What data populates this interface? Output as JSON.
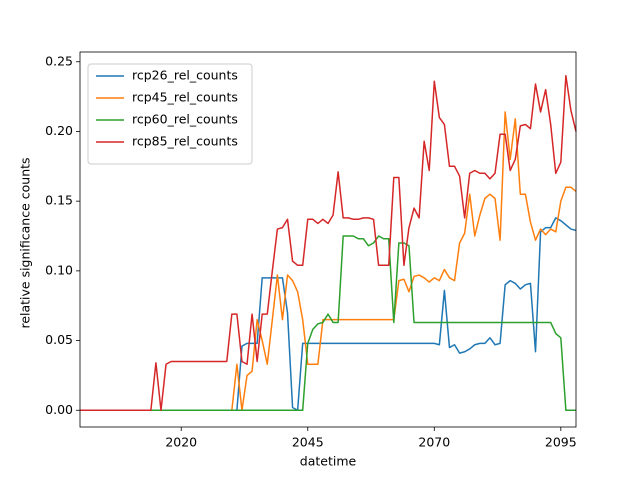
{
  "chart_data": {
    "type": "line",
    "x_label": "datetime",
    "y_label": "relative significance counts",
    "x": [
      2000,
      2001,
      2002,
      2003,
      2004,
      2005,
      2006,
      2007,
      2008,
      2009,
      2010,
      2011,
      2012,
      2013,
      2014,
      2015,
      2016,
      2017,
      2018,
      2019,
      2020,
      2021,
      2022,
      2023,
      2024,
      2025,
      2026,
      2027,
      2028,
      2029,
      2030,
      2031,
      2032,
      2033,
      2034,
      2035,
      2036,
      2037,
      2038,
      2039,
      2040,
      2041,
      2042,
      2043,
      2044,
      2045,
      2046,
      2047,
      2048,
      2049,
      2050,
      2051,
      2052,
      2053,
      2054,
      2055,
      2056,
      2057,
      2058,
      2059,
      2060,
      2061,
      2062,
      2063,
      2064,
      2065,
      2066,
      2067,
      2068,
      2069,
      2070,
      2071,
      2072,
      2073,
      2074,
      2075,
      2076,
      2077,
      2078,
      2079,
      2080,
      2081,
      2082,
      2083,
      2084,
      2085,
      2086,
      2087,
      2088,
      2089,
      2090,
      2091,
      2092,
      2093,
      2094,
      2095,
      2096,
      2097,
      2098
    ],
    "series": [
      {
        "name": "rcp26_rel_counts",
        "color": "#1f77b4",
        "values": [
          0,
          0,
          0,
          0,
          0,
          0,
          0,
          0,
          0,
          0,
          0,
          0,
          0,
          0,
          0,
          0,
          0,
          0,
          0,
          0,
          0,
          0,
          0,
          0,
          0,
          0,
          0,
          0,
          0,
          0,
          0,
          0,
          0.046,
          0.048,
          0.048,
          0.048,
          0.095,
          0.095,
          0.095,
          0.095,
          0.095,
          0.07,
          0.002,
          0,
          0.048,
          0.048,
          0.048,
          0.048,
          0.048,
          0.048,
          0.048,
          0.048,
          0.048,
          0.048,
          0.048,
          0.048,
          0.048,
          0.048,
          0.048,
          0.048,
          0.048,
          0.048,
          0.048,
          0.048,
          0.048,
          0.048,
          0.048,
          0.048,
          0.048,
          0.048,
          0.048,
          0.047,
          0.086,
          0.045,
          0.047,
          0.041,
          0.042,
          0.044,
          0.047,
          0.048,
          0.048,
          0.052,
          0.047,
          0.048,
          0.09,
          0.093,
          0.091,
          0.087,
          0.09,
          0.091,
          0.042,
          0.128,
          0.131,
          0.131,
          0.138,
          0.136,
          0.133,
          0.13,
          0.129
        ]
      },
      {
        "name": "rcp45_rel_counts",
        "color": "#ff7f0e",
        "values": [
          0,
          0,
          0,
          0,
          0,
          0,
          0,
          0,
          0,
          0,
          0,
          0,
          0,
          0,
          0,
          0,
          0,
          0,
          0,
          0,
          0,
          0,
          0,
          0,
          0,
          0,
          0,
          0,
          0,
          0,
          0,
          0.033,
          0,
          0.025,
          0.028,
          0.065,
          0.05,
          0.033,
          0.065,
          0.097,
          0.065,
          0.097,
          0.093,
          0.085,
          0.065,
          0.033,
          0.033,
          0.033,
          0.065,
          0.065,
          0.065,
          0.065,
          0.065,
          0.065,
          0.065,
          0.065,
          0.065,
          0.065,
          0.065,
          0.065,
          0.065,
          0.065,
          0.065,
          0.093,
          0.094,
          0.085,
          0.096,
          0.097,
          0.095,
          0.092,
          0.095,
          0.093,
          0.101,
          0.095,
          0.093,
          0.12,
          0.127,
          0.155,
          0.125,
          0.14,
          0.152,
          0.155,
          0.152,
          0.122,
          0.214,
          0.18,
          0.209,
          0.155,
          0.155,
          0.135,
          0.122,
          0.13,
          0.126,
          0.13,
          0.128,
          0.15,
          0.16,
          0.16,
          0.157
        ]
      },
      {
        "name": "rcp60_rel_counts",
        "color": "#2ca02c",
        "values": [
          0,
          0,
          0,
          0,
          0,
          0,
          0,
          0,
          0,
          0,
          0,
          0,
          0,
          0,
          0,
          0,
          0,
          0,
          0,
          0,
          0,
          0,
          0,
          0,
          0,
          0,
          0,
          0,
          0,
          0,
          0,
          0,
          0,
          0,
          0,
          0,
          0,
          0,
          0,
          0,
          0,
          0,
          0,
          0,
          0,
          0.048,
          0.058,
          0.062,
          0.063,
          0.069,
          0.063,
          0.063,
          0.125,
          0.125,
          0.125,
          0.123,
          0.123,
          0.118,
          0.12,
          0.125,
          0.123,
          0.123,
          0.063,
          0.12,
          0.12,
          0.118,
          0.063,
          0.063,
          0.063,
          0.063,
          0.063,
          0.063,
          0.063,
          0.063,
          0.063,
          0.063,
          0.063,
          0.063,
          0.063,
          0.063,
          0.063,
          0.063,
          0.063,
          0.063,
          0.063,
          0.063,
          0.063,
          0.063,
          0.063,
          0.063,
          0.063,
          0.063,
          0.063,
          0.063,
          0.055,
          0.052,
          0,
          0,
          0
        ]
      },
      {
        "name": "rcp85_rel_counts",
        "color": "#d62728",
        "values": [
          0,
          0,
          0,
          0,
          0,
          0,
          0,
          0,
          0,
          0,
          0,
          0,
          0,
          0,
          0,
          0.034,
          0,
          0.033,
          0.035,
          0.035,
          0.035,
          0.035,
          0.035,
          0.035,
          0.035,
          0.035,
          0.035,
          0.035,
          0.035,
          0.035,
          0.069,
          0.069,
          0.035,
          0.033,
          0.069,
          0.035,
          0.069,
          0.069,
          0.1,
          0.13,
          0.131,
          0.137,
          0.107,
          0.104,
          0.104,
          0.137,
          0.137,
          0.134,
          0.137,
          0.134,
          0.14,
          0.171,
          0.138,
          0.138,
          0.137,
          0.137,
          0.138,
          0.138,
          0.137,
          0.104,
          0.104,
          0.104,
          0.167,
          0.167,
          0.104,
          0.131,
          0.145,
          0.138,
          0.193,
          0.172,
          0.236,
          0.21,
          0.205,
          0.175,
          0.175,
          0.168,
          0.138,
          0.17,
          0.172,
          0.17,
          0.17,
          0.166,
          0.17,
          0.198,
          0.198,
          0.172,
          0.18,
          0.204,
          0.205,
          0.202,
          0.234,
          0.214,
          0.23,
          0.205,
          0.17,
          0.178,
          0.24,
          0.215,
          0.2
        ]
      }
    ],
    "xlim": [
      2000,
      2098
    ],
    "xticks": [
      2020,
      2045,
      2070,
      2095
    ],
    "ylim": [
      -0.012,
      0.257
    ],
    "yticks": [
      {
        "value": 0,
        "label": "0.00"
      },
      {
        "value": 0.05,
        "label": "0.05"
      },
      {
        "value": 0.1,
        "label": "0.10"
      },
      {
        "value": 0.15,
        "label": "0.15"
      },
      {
        "value": 0.2,
        "label": "0.20"
      },
      {
        "value": 0.25,
        "label": "0.25"
      }
    ],
    "legend": "upper left"
  }
}
